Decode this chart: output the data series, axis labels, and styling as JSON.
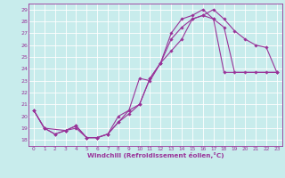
{
  "xlabel": "Windchill (Refroidissement éolien,°C)",
  "bg_color": "#c8ecec",
  "line_color": "#993399",
  "grid_color": "#ffffff",
  "xlim": [
    -0.5,
    23.5
  ],
  "ylim": [
    17.5,
    29.5
  ],
  "xticks": [
    0,
    1,
    2,
    3,
    4,
    5,
    6,
    7,
    8,
    9,
    10,
    11,
    12,
    13,
    14,
    15,
    16,
    17,
    18,
    19,
    20,
    21,
    22,
    23
  ],
  "yticks": [
    18,
    19,
    20,
    21,
    22,
    23,
    24,
    25,
    26,
    27,
    28,
    29
  ],
  "line1_x": [
    0,
    1,
    2,
    3,
    4,
    5,
    6,
    7,
    8,
    9,
    10,
    11,
    12,
    13,
    14,
    15,
    16,
    17,
    18,
    19,
    20,
    21,
    22,
    23
  ],
  "line1_y": [
    20.5,
    19.0,
    18.5,
    18.8,
    19.2,
    18.2,
    18.2,
    18.5,
    19.5,
    20.2,
    21.0,
    23.2,
    24.5,
    25.5,
    26.5,
    28.2,
    28.5,
    29.0,
    28.2,
    27.2,
    26.5,
    26.0,
    25.8,
    23.7
  ],
  "line2_x": [
    0,
    1,
    3,
    4,
    5,
    6,
    7,
    8,
    9,
    10,
    11,
    12,
    13,
    14,
    15,
    16,
    17,
    18,
    23
  ],
  "line2_y": [
    20.5,
    19.0,
    18.8,
    19.2,
    18.2,
    18.2,
    18.5,
    20.0,
    20.5,
    23.2,
    23.0,
    24.5,
    26.5,
    27.5,
    28.2,
    28.5,
    28.2,
    23.7,
    23.7
  ],
  "line3_x": [
    0,
    1,
    2,
    3,
    4,
    5,
    6,
    7,
    8,
    9,
    10,
    11,
    12,
    13,
    14,
    15,
    16,
    17,
    18,
    19,
    20,
    21,
    22,
    23
  ],
  "line3_y": [
    20.5,
    19.0,
    18.5,
    18.8,
    19.0,
    18.2,
    18.2,
    18.5,
    19.5,
    20.5,
    21.0,
    23.2,
    24.5,
    27.0,
    28.2,
    28.5,
    29.0,
    28.2,
    27.5,
    23.7,
    23.7,
    23.7,
    23.7,
    23.7
  ],
  "marker": "D",
  "markersize": 1.8,
  "linewidth": 0.8
}
